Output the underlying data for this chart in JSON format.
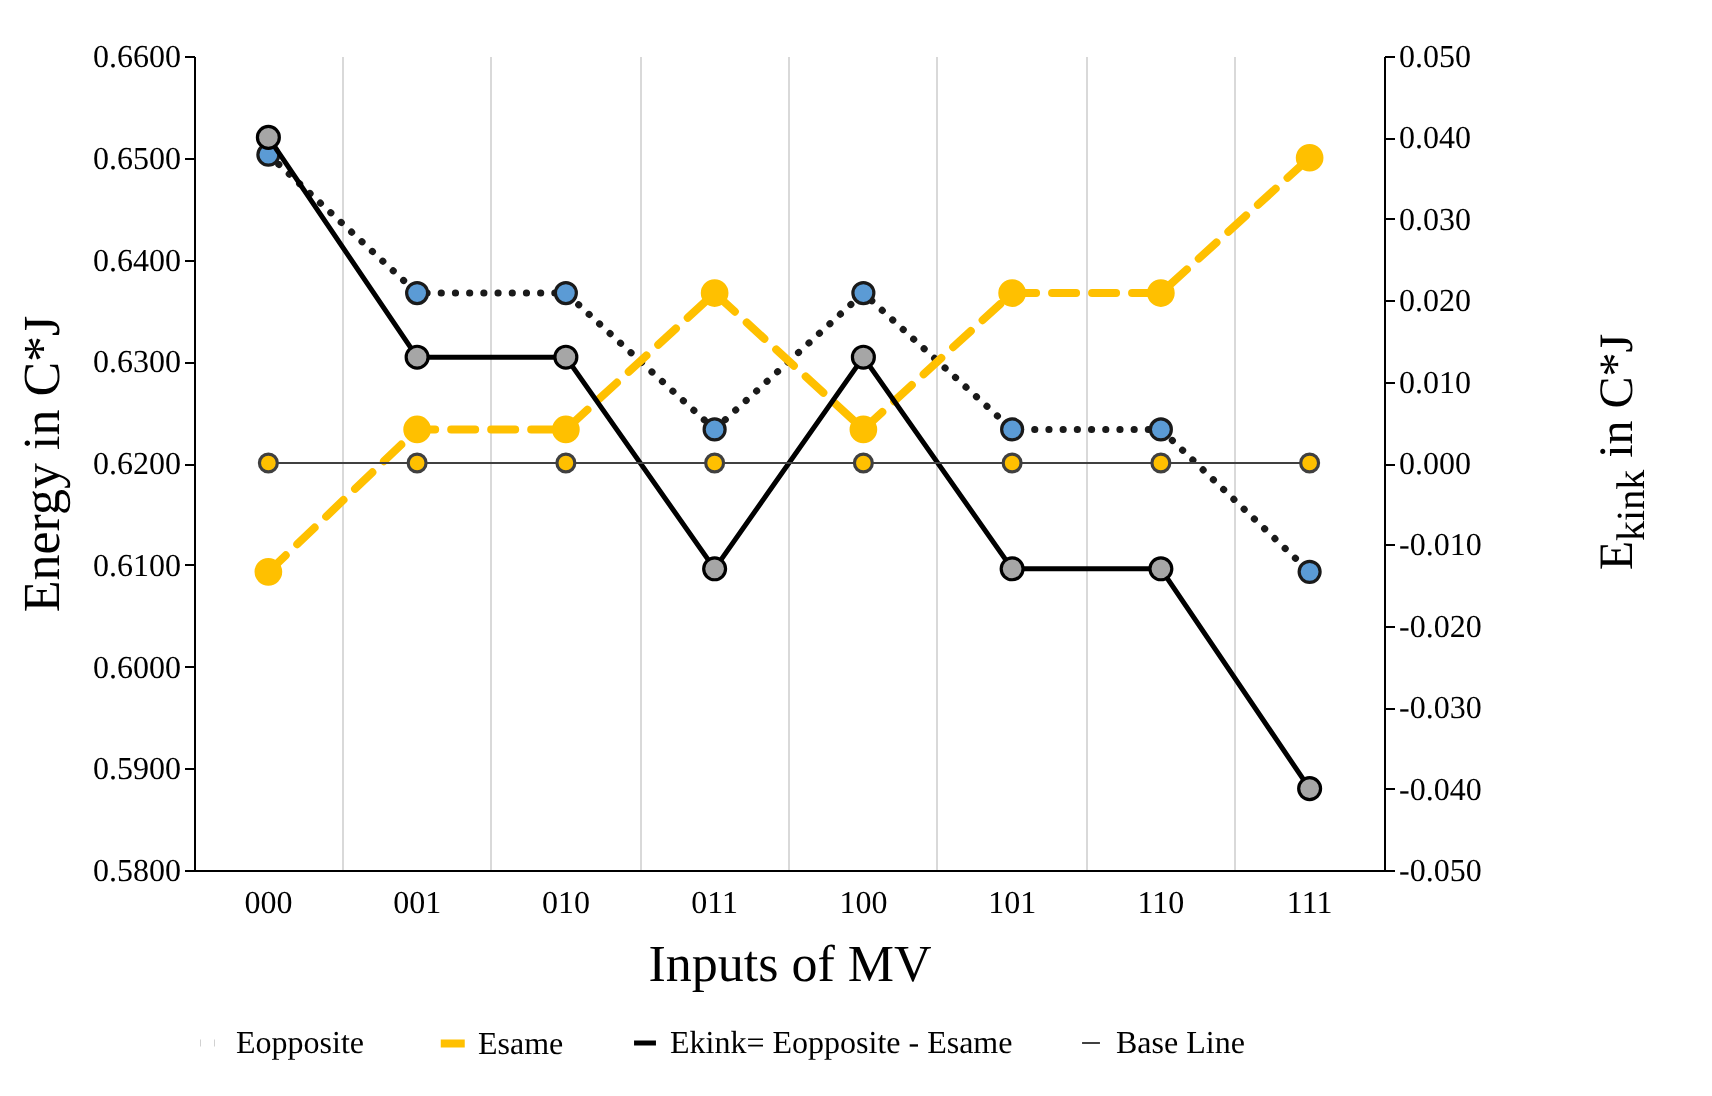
{
  "chart_data": {
    "type": "line",
    "xlabel": "Inputs of MV",
    "ylabel": "Energy  in C*J",
    "y2label": "E$_{kink}$ in C*J",
    "categories": [
      "000",
      "001",
      "010",
      "011",
      "100",
      "101",
      "110",
      "111"
    ],
    "series": [
      {
        "name": "Eopposite",
        "color": "#5b9bd5",
        "line_style": "dotted",
        "values": [
          0.6503,
          0.6367,
          0.6367,
          0.6233,
          0.6367,
          0.6233,
          0.6233,
          0.6093
        ]
      },
      {
        "name": "Esame",
        "color": "#ffc000",
        "line_style": "dashed",
        "values": [
          0.6093,
          0.6233,
          0.6233,
          0.6367,
          0.6233,
          0.6367,
          0.6367,
          0.65
        ]
      },
      {
        "name": "Ekink= Eopposite - Esame",
        "color": "#a6a6a6",
        "line_style": "solid",
        "axis": "y2",
        "values": [
          0.04,
          0.013,
          0.013,
          -0.013,
          0.013,
          -0.013,
          -0.013,
          -0.04
        ]
      },
      {
        "name": "Base Line",
        "color": "#ffc000",
        "line_style": "solid",
        "axis": "y2",
        "values": [
          0,
          0,
          0,
          0,
          0,
          0,
          0,
          0
        ]
      }
    ],
    "ylim": [
      0.58,
      0.66
    ],
    "yticks": [
      {
        "value": 0.58,
        "label": "0.5800"
      },
      {
        "value": 0.59,
        "label": "0.5900"
      },
      {
        "value": 0.6,
        "label": "0.6000"
      },
      {
        "value": 0.61,
        "label": "0.6100"
      },
      {
        "value": 0.62,
        "label": "0.6200"
      },
      {
        "value": 0.63,
        "label": "0.6300"
      },
      {
        "value": 0.64,
        "label": "0.6400"
      },
      {
        "value": 0.65,
        "label": "0.6500"
      },
      {
        "value": 0.66,
        "label": "0.6600"
      }
    ],
    "y2lim": [
      -0.05,
      0.05
    ],
    "y2ticks": [
      {
        "value": -0.05,
        "label": "-0.050"
      },
      {
        "value": -0.04,
        "label": "-0.040"
      },
      {
        "value": -0.03,
        "label": "-0.030"
      },
      {
        "value": -0.02,
        "label": "-0.020"
      },
      {
        "value": -0.01,
        "label": "-0.010"
      },
      {
        "value": 0,
        "label": "0.000"
      },
      {
        "value": 0.01,
        "label": "0.010"
      },
      {
        "value": 0.02,
        "label": "0.020"
      },
      {
        "value": 0.03,
        "label": "0.030"
      },
      {
        "value": 0.04,
        "label": "0.040"
      },
      {
        "value": 0.05,
        "label": "0.050"
      }
    ],
    "grid": "x",
    "legend": "bottom",
    "marker": "circle"
  }
}
